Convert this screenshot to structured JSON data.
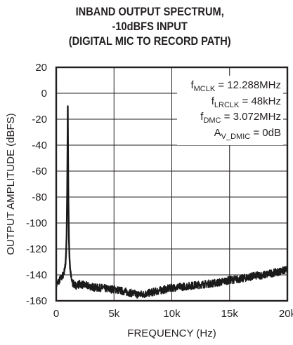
{
  "chart_data": {
    "type": "line",
    "title": [
      "INBAND OUTPUT SPECTRUM,",
      "-10dBFS INPUT",
      "(DIGITAL MIC TO RECORD PATH)"
    ],
    "xlabel": "FREQUENCY (Hz)",
    "ylabel": "OUTPUT AMPLITUDE (dBFS)",
    "xlim": [
      0,
      20000
    ],
    "ylim": [
      -160,
      20
    ],
    "xticks": [
      0,
      5000,
      10000,
      15000,
      20000
    ],
    "xtick_labels": [
      "0",
      "5k",
      "10k",
      "15k",
      "20k"
    ],
    "yticks": [
      20,
      0,
      -20,
      -40,
      -60,
      -80,
      -100,
      -120,
      -140,
      -160
    ],
    "ytick_labels": [
      "20",
      "0",
      "-20",
      "-40",
      "-60",
      "-80",
      "-100",
      "-120",
      "-140",
      "-160"
    ],
    "grid": true,
    "annotations": [
      {
        "main": "f",
        "sub": "MCLK",
        "rest": " = 12.288MHz"
      },
      {
        "main": "f",
        "sub": "LRCLK",
        "rest": " = 48kHz"
      },
      {
        "main": "f",
        "sub": "DMC",
        "rest": " = 3.072MHz"
      },
      {
        "main": "A",
        "sub": "V_DMIC",
        "rest": " = 0dB"
      }
    ],
    "series": [
      {
        "color": "#1a1a1a",
        "x": [
          0,
          200,
          400,
          600,
          700,
          800,
          850,
          900,
          950,
          980,
          1000,
          1020,
          1050,
          1100,
          1150,
          1200,
          1300,
          1400,
          1600,
          1800,
          2000,
          2500,
          3000,
          3500,
          4000,
          4500,
          5000,
          5500,
          6000,
          6500,
          7000,
          7500,
          8000,
          8500,
          9000,
          9500,
          10000,
          11000,
          12000,
          13000,
          14000,
          15000,
          16000,
          17000,
          18000,
          19000,
          20000
        ],
        "y": [
          -148,
          -145,
          -143,
          -140,
          -137,
          -132,
          -124,
          -110,
          -75,
          -40,
          -10,
          -40,
          -78,
          -112,
          -127,
          -135,
          -142,
          -146,
          -148,
          -148,
          -147,
          -148,
          -149,
          -150,
          -150,
          -151,
          -151,
          -152,
          -153,
          -154,
          -155,
          -155,
          -154,
          -153,
          -152,
          -151,
          -150,
          -149,
          -148,
          -147,
          -146,
          -144,
          -143,
          -141,
          -140,
          -138,
          -136
        ],
        "noise_amplitude_db": 3
      }
    ]
  }
}
